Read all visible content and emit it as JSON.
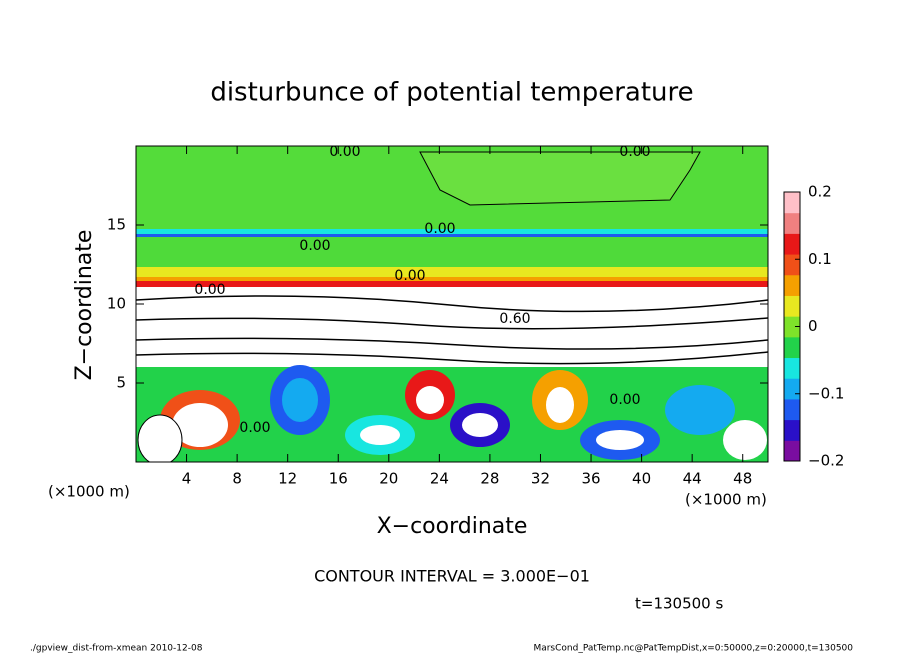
{
  "chart_data": {
    "type": "contour",
    "title": "disturbunce of potential temperature",
    "x_label": "X−coordinate",
    "y_label": "Z−coordinate",
    "x_unit_left": "(×1000 m)",
    "x_unit_right": "(×1000 m)",
    "xlim": [
      0,
      50
    ],
    "xticks": [
      4,
      8,
      12,
      16,
      20,
      24,
      28,
      32,
      36,
      40,
      44,
      48
    ],
    "ylim": [
      0,
      20
    ],
    "yticks": [
      5,
      10,
      15
    ],
    "colorbar_lim": [
      -0.2,
      0.2
    ],
    "colorbar_ticks": [
      0.2,
      0.1,
      0,
      {
        "value": -0.1,
        "label": "−0.1"
      },
      {
        "value": -0.2,
        "label": "−0.2"
      }
    ],
    "colorbar_colors": [
      "#7a0da0",
      "#2a10c8",
      "#1e5af0",
      "#14aaf0",
      "#18e6e0",
      "#22d24a",
      "#7ee22a",
      "#e8e820",
      "#f5a000",
      "#f05018",
      "#e81818",
      "#f08080",
      "#ffc0c8"
    ],
    "contour_labels": [
      "0.00",
      "0.00",
      "0.00",
      "0.00",
      "0.00",
      "0.00",
      "0.60",
      "0.00",
      "0.00"
    ],
    "contour_interval": "CONTOUR INTERVAL = 3.000E−01",
    "time_label": "t=130500 s",
    "footer_left": "./gpview_dist-from-xmean  2010-12-08",
    "footer_right": "MarsCond_PatTemp.nc@PatTempDist,x=0:50000,z=0:20000,t=130500"
  }
}
